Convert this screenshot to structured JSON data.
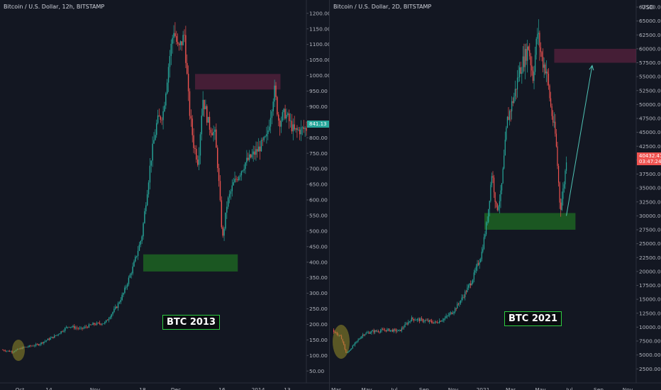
{
  "chart_data": [
    {
      "type": "candlestick",
      "title": "Bitcoin / U.S. Dollar, 12h, BITSTAMP",
      "annotation_label": "BTC 2013",
      "last_price": "841.13",
      "ylim": [
        30,
        1220
      ],
      "yticks": [
        50,
        100,
        150,
        200,
        250,
        300,
        350,
        400,
        450,
        500,
        550,
        600,
        650,
        700,
        750,
        800,
        850,
        900,
        950,
        1000,
        1050,
        1100,
        1150,
        1200
      ],
      "ytick_labels": [
        "50.00",
        "100.00",
        "150.00",
        "200.00",
        "250.00",
        "300.00",
        "350.00",
        "400.00",
        "450.00",
        "500.00",
        "550.00",
        "600.00",
        "650.00",
        "700.00",
        "750.00",
        "800.00",
        "850.00",
        "900.00",
        "950.00",
        "1000.00",
        "1050.00",
        "1100.00",
        "1150.00",
        "1200.00"
      ],
      "xtick_labels": [
        "Oct",
        "14",
        "Nov",
        "18",
        "Dec",
        "16",
        "2014",
        "13"
      ],
      "path": [
        [
          0,
          118
        ],
        [
          0.035,
          112
        ],
        [
          0.07,
          125
        ],
        [
          0.12,
          135
        ],
        [
          0.18,
          165
        ],
        [
          0.22,
          195
        ],
        [
          0.26,
          185
        ],
        [
          0.3,
          200
        ],
        [
          0.34,
          205
        ],
        [
          0.38,
          260
        ],
        [
          0.4,
          300
        ],
        [
          0.43,
          380
        ],
        [
          0.46,
          480
        ],
        [
          0.49,
          730
        ],
        [
          0.51,
          850
        ],
        [
          0.53,
          880
        ],
        [
          0.55,
          1050
        ],
        [
          0.565,
          1150
        ],
        [
          0.58,
          1080
        ],
        [
          0.6,
          1130
        ],
        [
          0.615,
          900
        ],
        [
          0.63,
          780
        ],
        [
          0.645,
          720
        ],
        [
          0.66,
          930
        ],
        [
          0.68,
          840
        ],
        [
          0.7,
          810
        ],
        [
          0.71,
          700
        ],
        [
          0.725,
          470
        ],
        [
          0.74,
          590
        ],
        [
          0.76,
          650
        ],
        [
          0.8,
          720
        ],
        [
          0.84,
          760
        ],
        [
          0.87,
          800
        ],
        [
          0.895,
          955
        ],
        [
          0.91,
          850
        ],
        [
          0.93,
          880
        ],
        [
          0.96,
          820
        ],
        [
          1.0,
          830
        ]
      ],
      "zones": [
        {
          "label": "resistance",
          "x0": 0.635,
          "x1": 0.915,
          "y0": 955,
          "y1": 1005
        },
        {
          "label": "support",
          "x0": 0.465,
          "x1": 0.775,
          "y0": 370,
          "y1": 425
        }
      ]
    },
    {
      "type": "candlestick",
      "title": "Bitcoin / U.S. Dollar, 2D, BITSTAMP",
      "annotation_label": "BTC 2021",
      "currency": "USD",
      "last_price": "40432.41",
      "last_price_timer": "03:47:24",
      "ylim": [
        1000,
        67500
      ],
      "yticks": [
        2500,
        5000,
        7500,
        10000,
        12500,
        15000,
        17500,
        20000,
        22500,
        25000,
        27500,
        30000,
        32500,
        35000,
        37500,
        40000,
        42500,
        45000,
        47500,
        50000,
        52500,
        55000,
        57500,
        60000,
        62500,
        65000,
        67500
      ],
      "ytick_labels": [
        "2500.00",
        "5000.00",
        "7500.00",
        "10000.00",
        "12500.00",
        "15000.00",
        "17500.00",
        "20000.00",
        "22500.00",
        "25000.00",
        "27500.00",
        "30000.00",
        "32500.00",
        "35000.00",
        "37500.00",
        "40000.00",
        "42500.00",
        "45000.00",
        "47500.00",
        "50000.00",
        "52500.00",
        "55000.00",
        "57500.00",
        "60000.00",
        "62500.00",
        "65000.00",
        "67500.00"
      ],
      "xtick_labels": [
        "Mar",
        "May",
        "Jul",
        "Sep",
        "Nov",
        "2021",
        "Mar",
        "May",
        "Jul",
        "Sep",
        "Nov"
      ],
      "path": [
        [
          0,
          9500
        ],
        [
          0.03,
          8000
        ],
        [
          0.045,
          5200
        ],
        [
          0.07,
          6800
        ],
        [
          0.1,
          8700
        ],
        [
          0.13,
          9200
        ],
        [
          0.18,
          9500
        ],
        [
          0.22,
          9300
        ],
        [
          0.26,
          11500
        ],
        [
          0.3,
          11200
        ],
        [
          0.34,
          10800
        ],
        [
          0.37,
          11600
        ],
        [
          0.4,
          13000
        ],
        [
          0.43,
          15500
        ],
        [
          0.46,
          18500
        ],
        [
          0.49,
          23000
        ],
        [
          0.51,
          29500
        ],
        [
          0.525,
          38000
        ],
        [
          0.54,
          31000
        ],
        [
          0.555,
          34000
        ],
        [
          0.575,
          47000
        ],
        [
          0.6,
          52000
        ],
        [
          0.615,
          56000
        ],
        [
          0.63,
          58000
        ],
        [
          0.645,
          60500
        ],
        [
          0.66,
          55000
        ],
        [
          0.675,
          63000
        ],
        [
          0.69,
          58000
        ],
        [
          0.705,
          56000
        ],
        [
          0.72,
          49000
        ],
        [
          0.735,
          44000
        ],
        [
          0.75,
          31000
        ],
        [
          0.765,
          37000
        ],
        [
          0.77,
          40432
        ]
      ],
      "zones": [
        {
          "label": "resistance",
          "x0": 0.73,
          "x1": 1.0,
          "y0": 57500,
          "y1": 60000
        },
        {
          "label": "support",
          "x0": 0.5,
          "x1": 0.8,
          "y0": 27500,
          "y1": 30500
        }
      ]
    }
  ]
}
